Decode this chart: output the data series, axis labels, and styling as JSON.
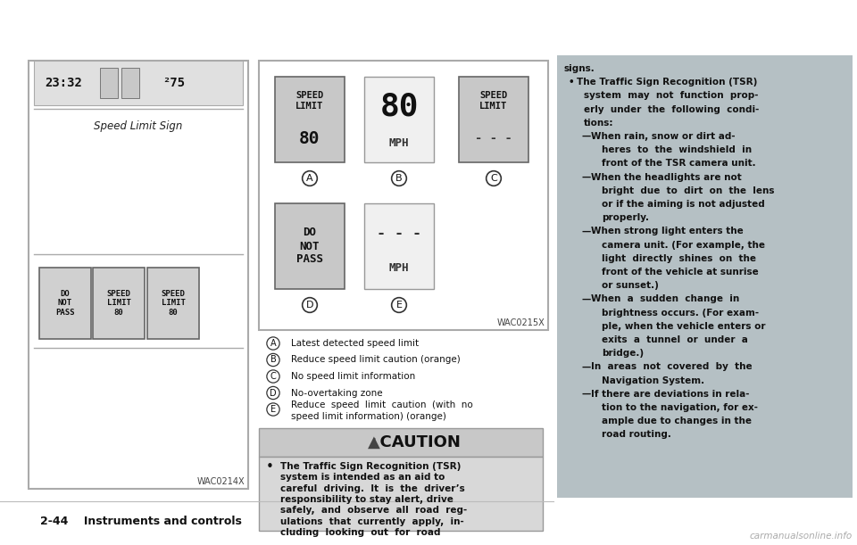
{
  "bg_color": "#ffffff",
  "right_panel_bg": "#b5c0c4",
  "caution_header_bg": "#c8c8c8",
  "caution_body_bg": "#d8d8d8",
  "bottom_text": "2-44    Instruments and controls",
  "watermark": "carmanualsonline.info",
  "wac0214x": "WAC0214X",
  "wac0215x": "WAC0215X",
  "labels_A_E": [
    [
      "A",
      "Latest detected speed limit"
    ],
    [
      "B",
      "Reduce speed limit caution (orange)"
    ],
    [
      "C",
      "No speed limit information"
    ],
    [
      "D",
      "No-overtaking zone"
    ],
    [
      "E",
      "Reduce  speed  limit  caution  (with  no\nspeed limit information) (orange)"
    ]
  ],
  "caution_title": "  CAUTION",
  "caution_body_lines": [
    "The Traffic Sign Recognition (TSR)",
    "system is intended as an aid to",
    "careful  driving.  It  is  the  driver’s",
    "responsibility to stay alert, drive",
    "safely,  and  observe  all  road  reg-",
    "ulations  that  currently  apply,  in-",
    "cluding  looking  out  for  road"
  ],
  "right_lines": [
    {
      "text": "signs.",
      "bold": true,
      "indent": 8,
      "prefix": ""
    },
    {
      "text": "The Traffic Sign Recognition (TSR)",
      "bold": true,
      "indent": 22,
      "prefix": "•"
    },
    {
      "text": "system  may  not  function  prop-",
      "bold": true,
      "indent": 30,
      "prefix": ""
    },
    {
      "text": "erly  under  the  following  condi-",
      "bold": true,
      "indent": 30,
      "prefix": ""
    },
    {
      "text": "tions:",
      "bold": true,
      "indent": 30,
      "prefix": ""
    },
    {
      "text": "When rain, snow or dirt ad-",
      "bold": true,
      "indent": 38,
      "prefix": "—"
    },
    {
      "text": "heres  to  the  windshield  in",
      "bold": true,
      "indent": 50,
      "prefix": ""
    },
    {
      "text": "front of the TSR camera unit.",
      "bold": true,
      "indent": 50,
      "prefix": ""
    },
    {
      "text": "When the headlights are not",
      "bold": true,
      "indent": 38,
      "prefix": "—"
    },
    {
      "text": "bright  due  to  dirt  on  the  lens",
      "bold": true,
      "indent": 50,
      "prefix": ""
    },
    {
      "text": "or if the aiming is not adjusted",
      "bold": true,
      "indent": 50,
      "prefix": ""
    },
    {
      "text": "properly.",
      "bold": true,
      "indent": 50,
      "prefix": ""
    },
    {
      "text": "When strong light enters the",
      "bold": true,
      "indent": 38,
      "prefix": "—"
    },
    {
      "text": "camera unit. (For example, the",
      "bold": true,
      "indent": 50,
      "prefix": ""
    },
    {
      "text": "light  directly  shines  on  the",
      "bold": true,
      "indent": 50,
      "prefix": ""
    },
    {
      "text": "front of the vehicle at sunrise",
      "bold": true,
      "indent": 50,
      "prefix": ""
    },
    {
      "text": "or sunset.)",
      "bold": true,
      "indent": 50,
      "prefix": ""
    },
    {
      "text": "When  a  sudden  change  in",
      "bold": true,
      "indent": 38,
      "prefix": "—"
    },
    {
      "text": "brightness occurs. (For exam-",
      "bold": true,
      "indent": 50,
      "prefix": ""
    },
    {
      "text": "ple, when the vehicle enters or",
      "bold": true,
      "indent": 50,
      "prefix": ""
    },
    {
      "text": "exits  a  tunnel  or  under  a",
      "bold": true,
      "indent": 50,
      "prefix": ""
    },
    {
      "text": "bridge.)",
      "bold": true,
      "indent": 50,
      "prefix": ""
    },
    {
      "text": "In  areas  not  covered  by  the",
      "bold": true,
      "indent": 38,
      "prefix": "—"
    },
    {
      "text": "Navigation System.",
      "bold": true,
      "indent": 50,
      "prefix": ""
    },
    {
      "text": "If there are deviations in rela-",
      "bold": true,
      "indent": 38,
      "prefix": "—"
    },
    {
      "text": "tion to the navigation, for ex-",
      "bold": true,
      "indent": 50,
      "prefix": ""
    },
    {
      "text": "ample due to changes in the",
      "bold": true,
      "indent": 50,
      "prefix": ""
    },
    {
      "text": "road routing.",
      "bold": true,
      "indent": 50,
      "prefix": ""
    }
  ]
}
